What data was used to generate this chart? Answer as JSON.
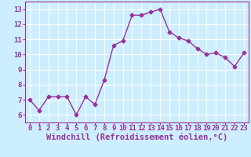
{
  "title": "",
  "xlabel": "Windchill (Refroidissement éolien,°C)",
  "x": [
    0,
    1,
    2,
    3,
    4,
    5,
    6,
    7,
    8,
    9,
    10,
    11,
    12,
    13,
    14,
    15,
    16,
    17,
    18,
    19,
    20,
    21,
    22,
    23
  ],
  "y": [
    7.0,
    6.3,
    7.2,
    7.2,
    7.2,
    6.0,
    7.2,
    6.7,
    8.3,
    10.6,
    10.9,
    12.6,
    12.6,
    12.8,
    13.0,
    11.5,
    11.1,
    10.9,
    10.4,
    10.0,
    10.1,
    9.8,
    9.2,
    10.1
  ],
  "line_color": "#993399",
  "marker": "D",
  "marker_size": 2.5,
  "line_width": 1.0,
  "background_color": "#cceeff",
  "grid_color": "#ffffff",
  "ylim": [
    5.5,
    13.5
  ],
  "yticks": [
    6,
    7,
    8,
    9,
    10,
    11,
    12,
    13
  ],
  "xlim": [
    -0.5,
    23.5
  ],
  "xtick_labels": [
    "0",
    "1",
    "2",
    "3",
    "4",
    "5",
    "6",
    "7",
    "8",
    "9",
    "10",
    "11",
    "12",
    "13",
    "14",
    "15",
    "16",
    "17",
    "18",
    "19",
    "20",
    "21",
    "22",
    "23"
  ],
  "tick_color": "#993399",
  "label_color": "#993399",
  "font_size": 6.5,
  "xlabel_font_size": 7.5
}
